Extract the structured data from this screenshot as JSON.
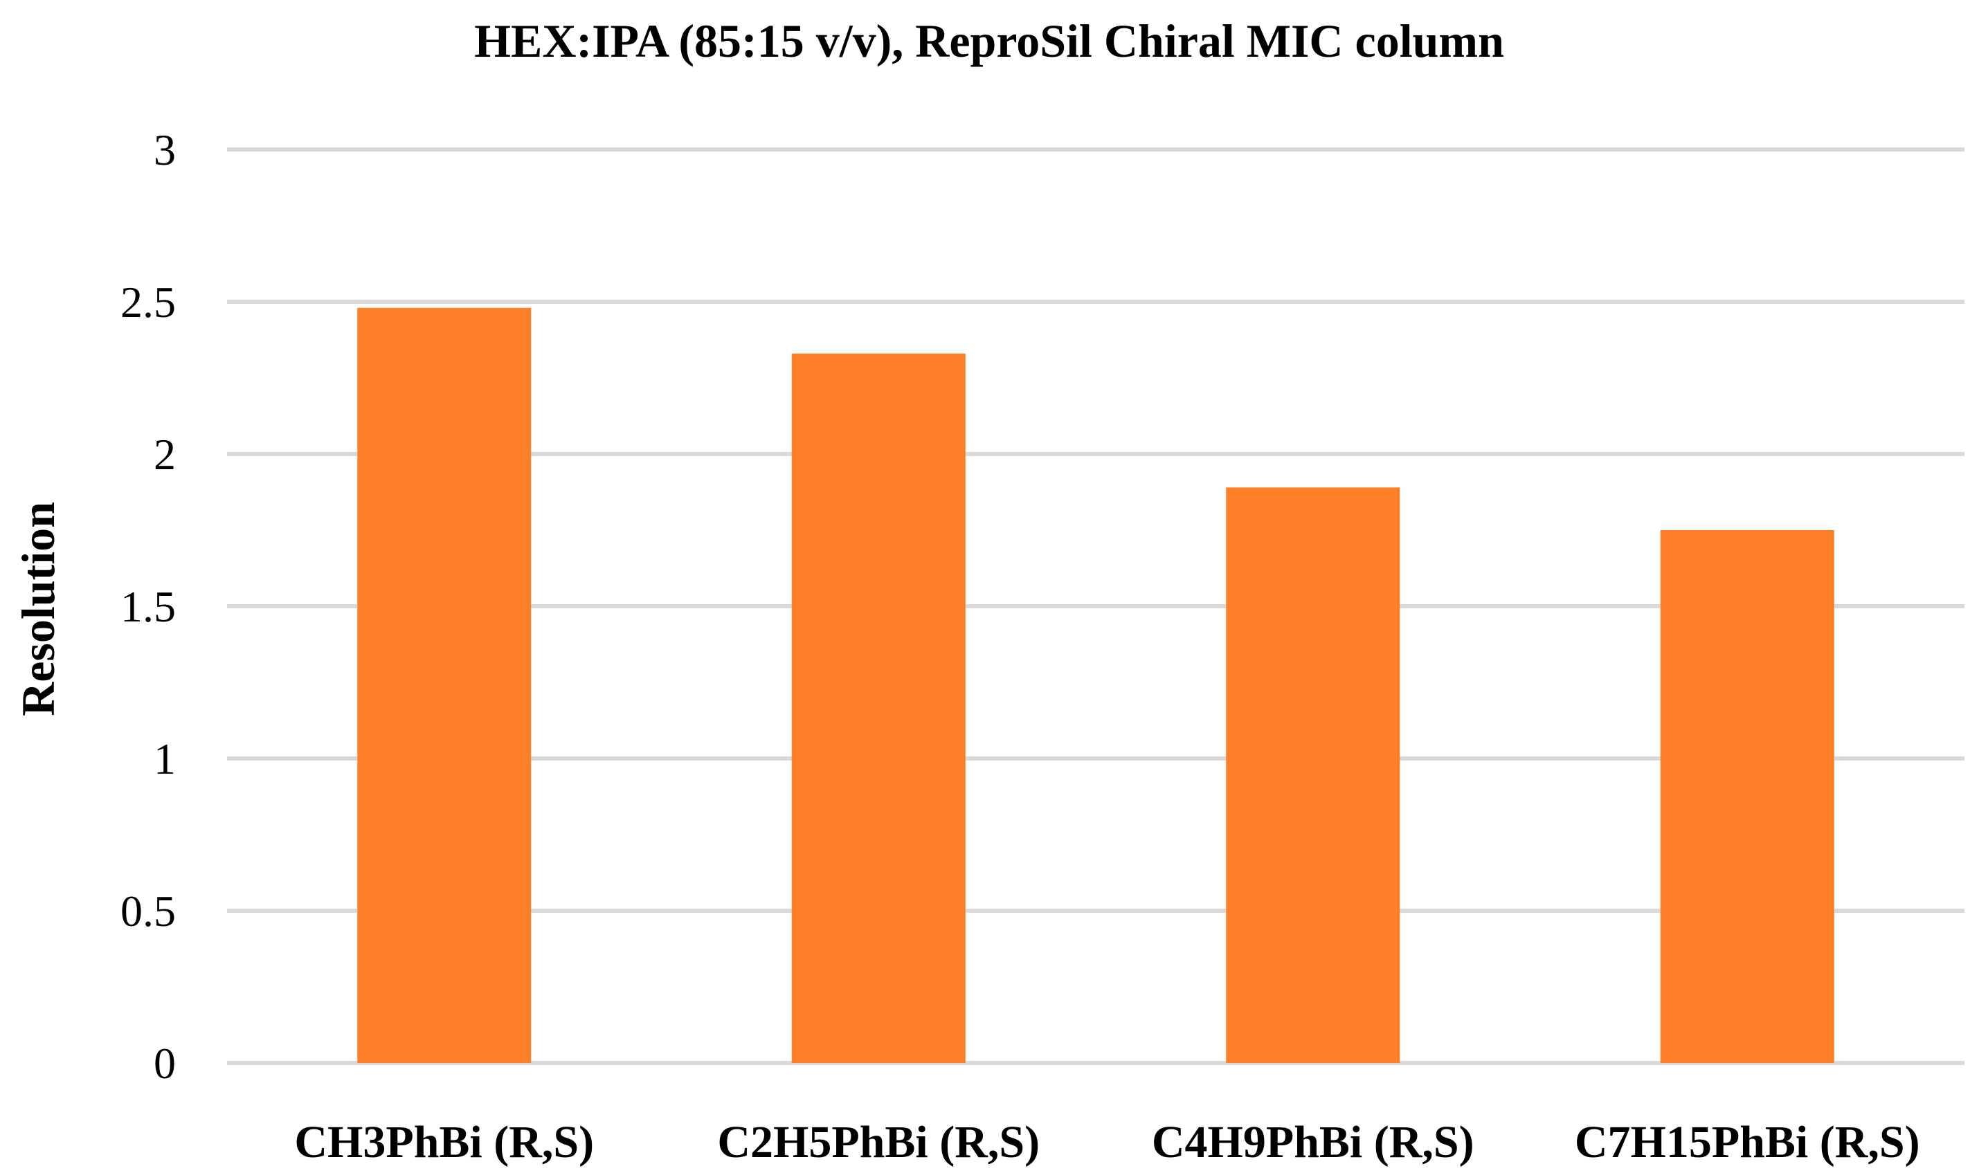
{
  "chart_data": {
    "type": "bar",
    "title": "HEX:IPA (85:15 v/v), ReproSil Chiral MIC column",
    "xlabel": "",
    "ylabel": "Resolution",
    "categories": [
      "CH3PhBi (R,S)",
      "C2H5PhBi (R,S)",
      "C4H9PhBi (R,S)",
      "C7H15PhBi (R,S)"
    ],
    "values": [
      2.48,
      2.33,
      1.89,
      1.75
    ],
    "ylim": [
      0,
      3
    ],
    "yticks": [
      "0",
      "0.5",
      "1",
      "1.5",
      "2",
      "2.5",
      "3"
    ],
    "grid": true,
    "legend": "none",
    "bar_color": "#fd7f28"
  }
}
